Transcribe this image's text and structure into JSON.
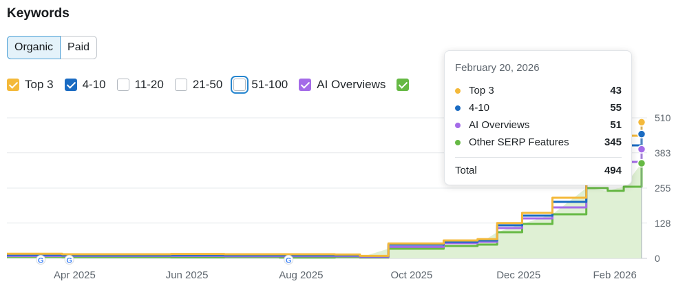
{
  "title": "Keywords",
  "tabs": [
    {
      "label": "Organic",
      "active": true
    },
    {
      "label": "Paid",
      "active": false
    }
  ],
  "filters": [
    {
      "label": "Top 3",
      "checked": true,
      "color": "#f4b93a"
    },
    {
      "label": "4-10",
      "checked": true,
      "color": "#1a6bc2"
    },
    {
      "label": "11-20",
      "checked": false,
      "color": ""
    },
    {
      "label": "21-50",
      "checked": false,
      "color": ""
    },
    {
      "label": "51-100",
      "checked": false,
      "color": "",
      "focused": true
    },
    {
      "label": "AI Overviews",
      "checked": true,
      "color": "#a46be8"
    },
    {
      "label": "",
      "checked": true,
      "color": "#66b944"
    }
  ],
  "tooltip": {
    "date": "February 20, 2026",
    "rows": [
      {
        "label": "Top 3",
        "value": "43",
        "color": "#f4b93a"
      },
      {
        "label": "4-10",
        "value": "55",
        "color": "#1a6bc2"
      },
      {
        "label": "AI Overviews",
        "value": "51",
        "color": "#a46be8"
      },
      {
        "label": "Other SERP Features",
        "value": "345",
        "color": "#66b944"
      }
    ],
    "total_label": "Total",
    "total_value": "494"
  },
  "chart_data": {
    "type": "area",
    "x_tick_labels": [
      "Apr 2025",
      "Jun 2025",
      "Aug 2025",
      "Oct 2025",
      "Dec 2025",
      "Feb 2026"
    ],
    "y_tick_labels": [
      "0",
      "128",
      "255",
      "383",
      "510"
    ],
    "ylim": [
      0,
      510
    ],
    "grid": true,
    "x": [
      "2025-03-01",
      "2025-04-01",
      "2025-05-01",
      "2025-06-01",
      "2025-07-01",
      "2025-08-01",
      "2025-09-01",
      "2025-09-15",
      "2025-10-01",
      "2025-11-01",
      "2025-11-20",
      "2025-12-01",
      "2025-12-15",
      "2026-01-01",
      "2026-01-20",
      "2026-02-01",
      "2026-02-10",
      "2026-02-20"
    ],
    "series": [
      {
        "name": "Other SERP Features",
        "color": "#66b944",
        "values": [
          6,
          5,
          5,
          4,
          5,
          3,
          5,
          3,
          35,
          45,
          50,
          95,
          125,
          160,
          255,
          245,
          260,
          345
        ]
      },
      {
        "name": "AI Overviews",
        "color": "#a46be8",
        "values": [
          9,
          9,
          9,
          9,
          8,
          8,
          8,
          5,
          42,
          55,
          60,
          110,
          145,
          185,
          300,
          330,
          350,
          396
        ]
      },
      {
        "name": "4-10",
        "color": "#1a6bc2",
        "values": [
          13,
          11,
          11,
          12,
          11,
          11,
          11,
          8,
          50,
          60,
          65,
          120,
          155,
          205,
          330,
          370,
          410,
          451
        ]
      },
      {
        "name": "Top 3",
        "color": "#f4b93a",
        "values": [
          17,
          15,
          15,
          16,
          15,
          15,
          14,
          9,
          54,
          65,
          70,
          128,
          165,
          220,
          360,
          420,
          445,
          494
        ]
      }
    ],
    "annotations": [
      {
        "x": "2025-03-20",
        "type": "google-update"
      },
      {
        "x": "2025-04-05",
        "type": "google-update"
      },
      {
        "x": "2025-08-06",
        "type": "google-update"
      }
    ]
  }
}
